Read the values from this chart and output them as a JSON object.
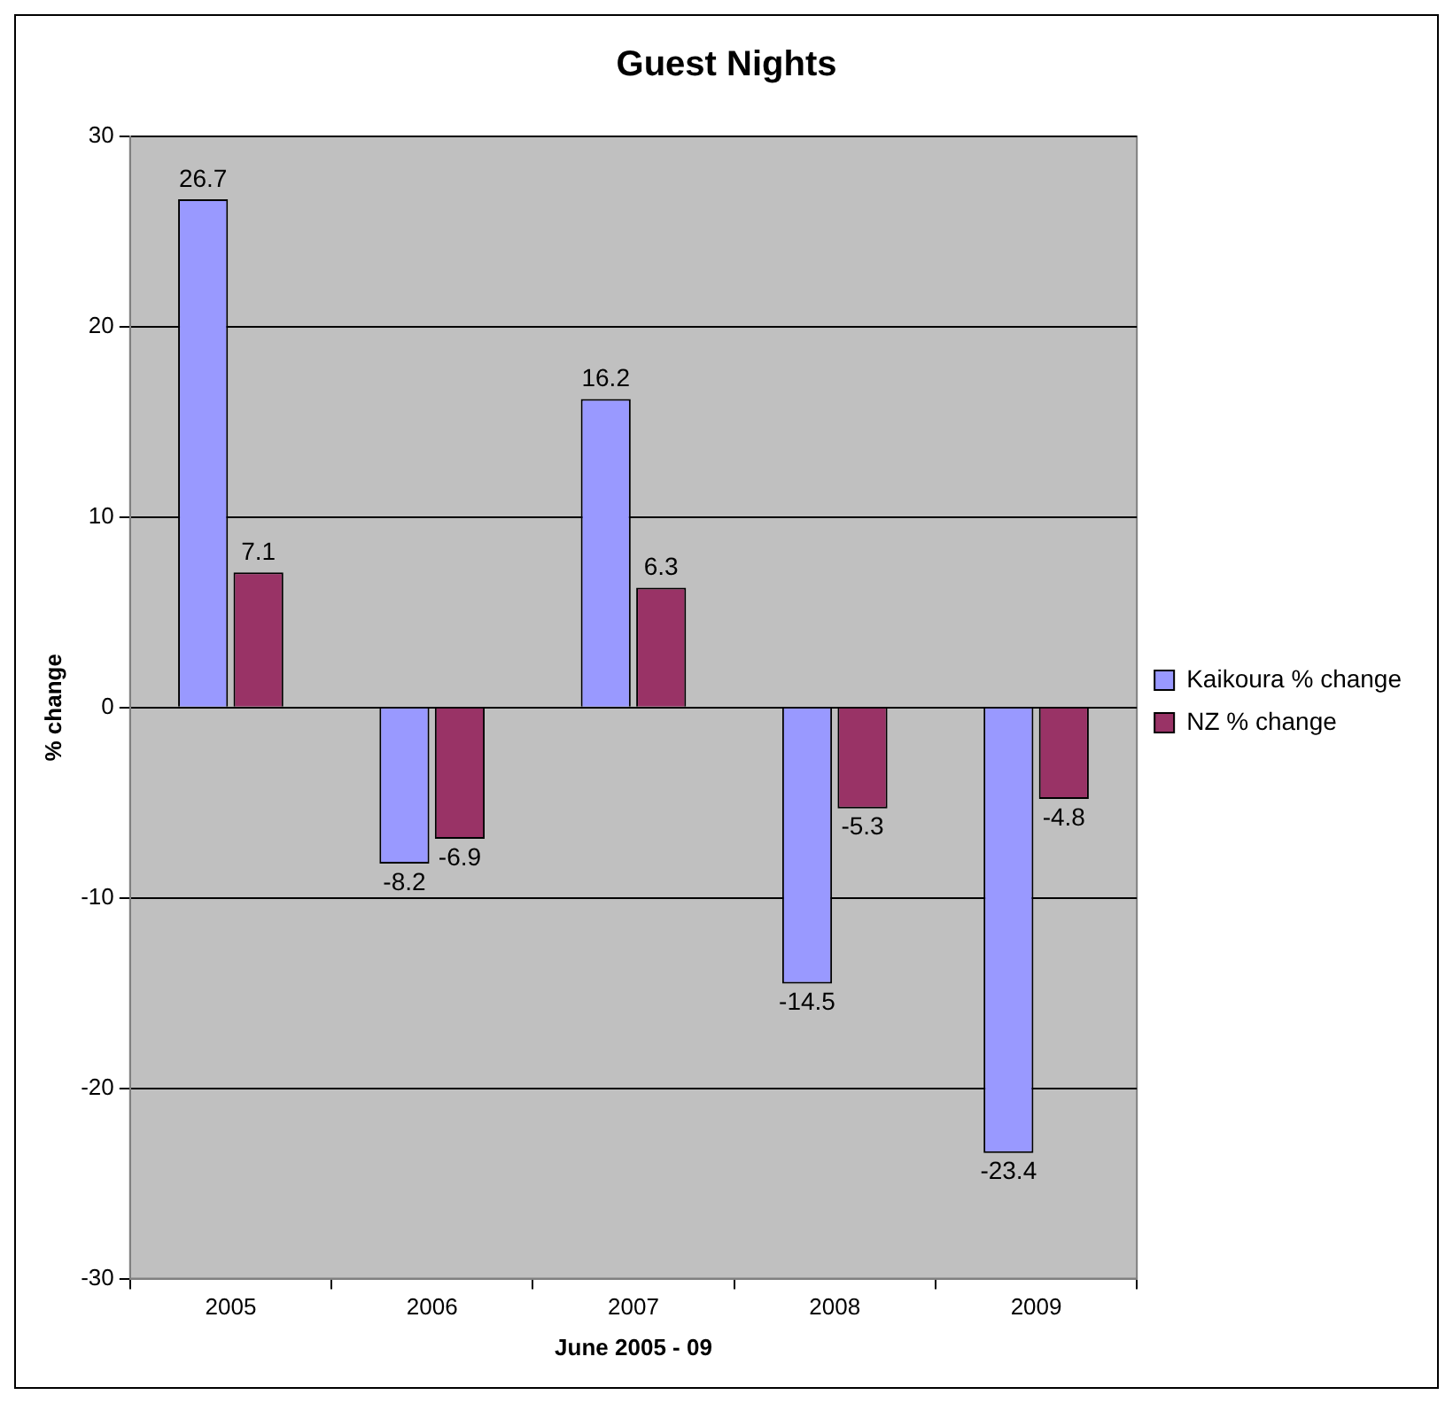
{
  "chart_data": {
    "type": "bar",
    "title": "Guest Nights",
    "xlabel": "June 2005 - 09",
    "ylabel": "% change",
    "categories": [
      "2005",
      "2006",
      "2007",
      "2008",
      "2009"
    ],
    "series": [
      {
        "name": "Kaikoura % change",
        "color": "#9999ff",
        "values": [
          26.7,
          -8.2,
          16.2,
          -14.5,
          -23.4
        ]
      },
      {
        "name": "NZ % change",
        "color": "#993366",
        "values": [
          7.1,
          -6.9,
          6.3,
          -5.3,
          -4.8
        ]
      }
    ],
    "ylim": [
      -30,
      30
    ],
    "yticks": [
      -30,
      -20,
      -10,
      0,
      10,
      20,
      30
    ],
    "grid": "y",
    "legend": "right",
    "data_labels": true
  }
}
